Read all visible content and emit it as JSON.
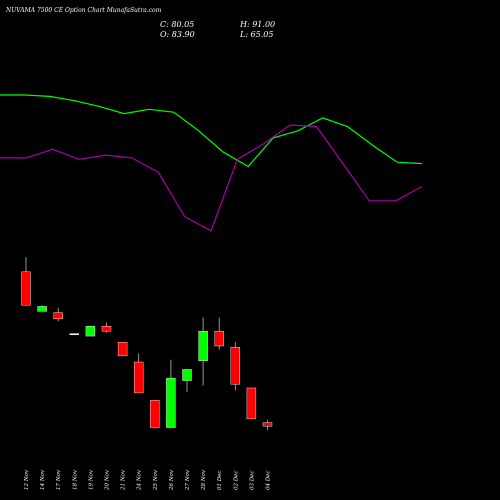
{
  "chart_data": {
    "type": "candlestick",
    "title": "NUVAMA 7500  CE Option  Chart MunafaSutra.com",
    "ohlc_labels": {
      "c": "C: 80.05",
      "h": "H: 91.00",
      "o": "O: 83.90",
      "l": "L: 65.05"
    },
    "categories": [
      "12 Nov",
      "14 Nov",
      "17 Nov",
      "18 Nov",
      "19 Nov",
      "20 Nov",
      "21 Nov",
      "24 Nov",
      "25 Nov",
      "26 Nov",
      "27 Nov",
      "28 Nov",
      "01 Dec",
      "02 Dec",
      "03 Dec",
      "04 Dec"
    ],
    "candles": [
      {
        "date": "12 Nov",
        "open": 128,
        "close": 101,
        "high": 140,
        "low": 101,
        "color": "#ff0000"
      },
      {
        "date": "14 Nov",
        "open": 96,
        "close": 100,
        "high": 101,
        "low": 96,
        "color": "#00ff00"
      },
      {
        "date": "17 Nov",
        "open": 95,
        "close": 90,
        "high": 99,
        "low": 88,
        "color": "#ff0000"
      },
      {
        "date": "18 Nov",
        "open": 78,
        "close": 78,
        "high": 78,
        "low": 78,
        "color": "#ffffff"
      },
      {
        "date": "19 Nov",
        "open": 76,
        "close": 84,
        "high": 84,
        "low": 76,
        "color": "#00ff00"
      },
      {
        "date": "20 Nov",
        "open": 84,
        "close": 80,
        "high": 87,
        "low": 79,
        "color": "#ff0000"
      },
      {
        "date": "21 Nov",
        "open": 71,
        "close": 60,
        "high": 71,
        "low": 60,
        "color": "#ff0000"
      },
      {
        "date": "24 Nov",
        "open": 55,
        "close": 30,
        "high": 62,
        "low": 30,
        "color": "#ff0000"
      },
      {
        "date": "25 Nov",
        "open": 24,
        "close": 2,
        "high": 24,
        "low": 2,
        "color": "#ff0000"
      },
      {
        "date": "26 Nov",
        "open": 2,
        "close": 42,
        "high": 57,
        "low": 2,
        "color": "#00ff00"
      },
      {
        "date": "27 Nov",
        "open": 40,
        "close": 49,
        "high": 49,
        "low": 31,
        "color": "#00ff00"
      },
      {
        "date": "28 Nov",
        "open": 56,
        "close": 80,
        "high": 91,
        "low": 36,
        "color": "#00ff00"
      },
      {
        "date": "01 Dec",
        "open": 80,
        "close": 68,
        "high": 91,
        "low": 65,
        "color": "#ff0000"
      },
      {
        "date": "02 Dec",
        "open": 67,
        "close": 37,
        "high": 71,
        "low": 32,
        "color": "#ff0000"
      },
      {
        "date": "03 Dec",
        "open": 34,
        "close": 9,
        "high": 34,
        "low": 9,
        "color": "#ff0000"
      },
      {
        "date": "04 Dec",
        "open": 6,
        "close": 3,
        "high": 8,
        "low": 0,
        "color": "#ff0000"
      }
    ],
    "overlay_lines": [
      {
        "color": "#00ff00",
        "values": [
          100,
          100,
          99,
          96,
          92,
          87,
          90,
          88,
          75,
          60,
          50,
          70,
          75,
          84,
          78,
          65,
          53,
          52
        ]
      },
      {
        "color": "#aa00aa",
        "values": [
          56,
          56,
          62,
          55,
          58,
          56,
          46,
          15,
          5,
          55,
          66,
          79,
          78,
          52,
          26,
          26,
          36
        ]
      }
    ],
    "grid": false
  }
}
